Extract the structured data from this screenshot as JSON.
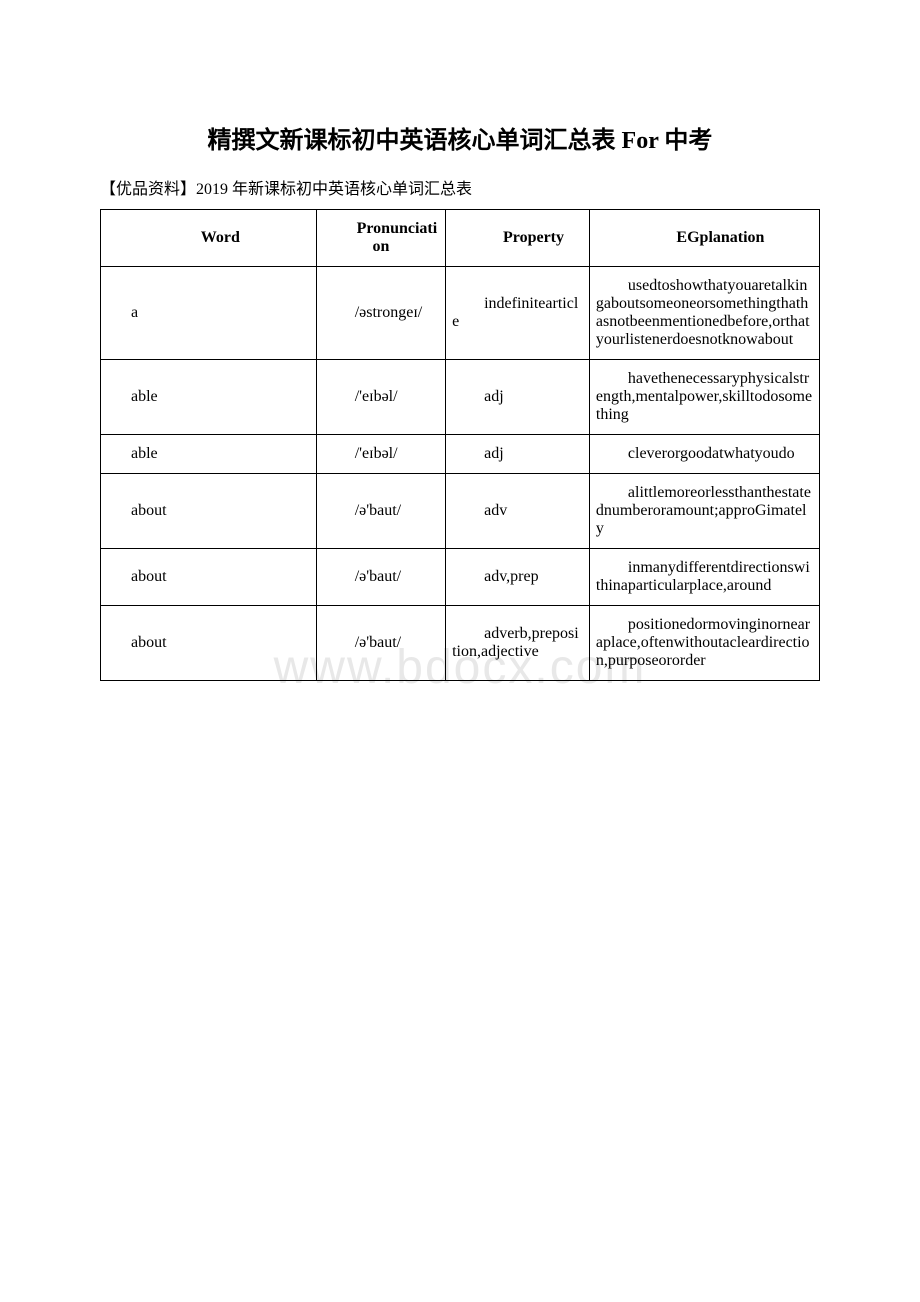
{
  "title": "精撰文新课标初中英语核心单词汇总表 For 中考",
  "subtitle": "【优品资料】2019 年新课标初中英语核心单词汇总表",
  "watermark": "www.bdocx.com",
  "table": {
    "headers": [
      "Word",
      "Pronunciation",
      "Property",
      "EGplanation"
    ],
    "rows": [
      {
        "word": "a",
        "pron": "/əstrongeɪ/",
        "prop": "indefinitearticle",
        "exp": "usedtoshowthatyouaretalkingaboutsomeoneorsomethingthathasnotbeenmentionedbefore,orthatyourlistenerdoesnotknowabout"
      },
      {
        "word": "able",
        "pron": "/'eɪbəl/",
        "prop": "adj",
        "exp": "havethenecessaryphysicalstrength,mentalpower,skilltodosomething"
      },
      {
        "word": "able",
        "pron": "/'eɪbəl/",
        "prop": "adj",
        "exp": "cleverorgoodatwhatyoudo"
      },
      {
        "word": "about",
        "pron": "/ə'baut/",
        "prop": "adv",
        "exp": "alittlemoreorlessthanthestatednumberoramount;approGimately"
      },
      {
        "word": "about",
        "pron": "/ə'baut/",
        "prop": "adv,prep",
        "exp": "inmanydifferentdirectionswithinaparticularplace,around"
      },
      {
        "word": "about",
        "pron": "/ə'baut/",
        "prop": "adverb,preposition,adjective",
        "exp": "positionedormovinginornearaplace,oftenwithoutacleardirection,purposeororder"
      }
    ]
  },
  "style": {
    "background_color": "#ffffff",
    "text_color": "#000000",
    "border_color": "#000000",
    "watermark_color": "#e8e8e8",
    "title_fontsize": 24,
    "body_fontsize": 16,
    "watermark_fontsize": 48
  }
}
